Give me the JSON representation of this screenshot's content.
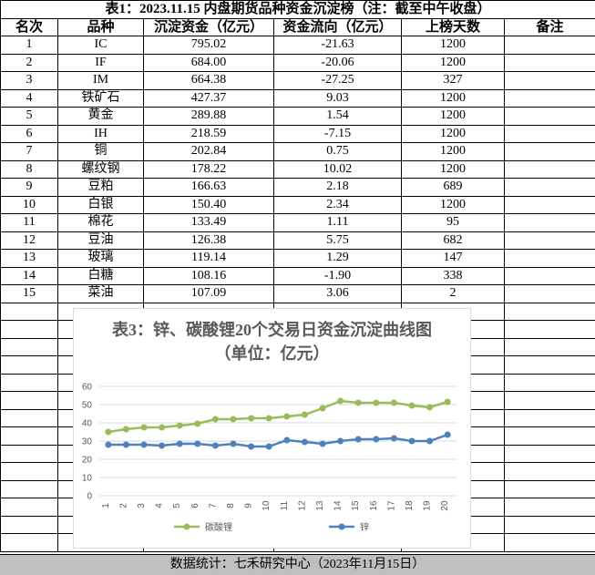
{
  "table": {
    "title": "表1：2023.11.15 内盘期货品种资金沉淀榜（注：截至中午收盘）",
    "header": [
      "名次",
      "品种",
      "沉淀资金（亿元）",
      "资金流向（亿元）",
      "上榜天数",
      "备注"
    ],
    "rows": [
      [
        "1",
        "IC",
        "795.02",
        "-21.63",
        "1200"
      ],
      [
        "2",
        "IF",
        "684.00",
        "-20.06",
        "1200"
      ],
      [
        "3",
        "IM",
        "664.38",
        "-27.25",
        "327"
      ],
      [
        "4",
        "铁矿石",
        "427.37",
        "9.03",
        "1200"
      ],
      [
        "5",
        "黄金",
        "289.88",
        "1.54",
        "1200"
      ],
      [
        "6",
        "IH",
        "218.59",
        "-7.15",
        "1200"
      ],
      [
        "7",
        "铜",
        "202.84",
        "0.75",
        "1200"
      ],
      [
        "8",
        "螺纹钢",
        "178.22",
        "10.02",
        "1200"
      ],
      [
        "9",
        "豆粕",
        "166.63",
        "2.18",
        "689"
      ],
      [
        "10",
        "白银",
        "150.40",
        "2.34",
        "1200"
      ],
      [
        "11",
        "棉花",
        "133.49",
        "1.11",
        "95"
      ],
      [
        "12",
        "豆油",
        "126.38",
        "5.75",
        "682"
      ],
      [
        "13",
        "玻璃",
        "119.14",
        "1.29",
        "147"
      ],
      [
        "14",
        "白糖",
        "108.16",
        "-1.90",
        "338"
      ],
      [
        "15",
        "菜油",
        "107.09",
        "3.06",
        "2"
      ]
    ]
  },
  "chart_data": {
    "type": "line",
    "title": "表3：锌、碳酸锂20个交易日资金沉淀曲线图（单位：亿元）",
    "categories": [
      "1",
      "2",
      "3",
      "4",
      "5",
      "6",
      "7",
      "8",
      "9",
      "10",
      "11",
      "12",
      "13",
      "14",
      "15",
      "16",
      "17",
      "18",
      "19",
      "20"
    ],
    "series": [
      {
        "name": "碳酸锂",
        "color": "#9bbb59",
        "values": [
          35,
          36.5,
          37.5,
          37.5,
          38.5,
          39.5,
          42,
          42,
          42.5,
          42.5,
          43.5,
          44.5,
          48,
          52,
          51,
          51,
          51,
          49.5,
          48.5,
          51.5
        ]
      },
      {
        "name": "锌",
        "color": "#4f81bd",
        "values": [
          28,
          28,
          28,
          27.5,
          28.5,
          28.5,
          27.5,
          28.5,
          27,
          27,
          30.5,
          29.5,
          28.5,
          30,
          31,
          31,
          31.5,
          30,
          30,
          33.5
        ]
      }
    ],
    "ylim": [
      0,
      60
    ],
    "yticks": [
      0,
      10,
      20,
      30,
      40,
      50,
      60
    ],
    "grid": true,
    "legend": "bottom"
  },
  "footer": "数据统计：七禾研究中心（2023年11月15日）"
}
